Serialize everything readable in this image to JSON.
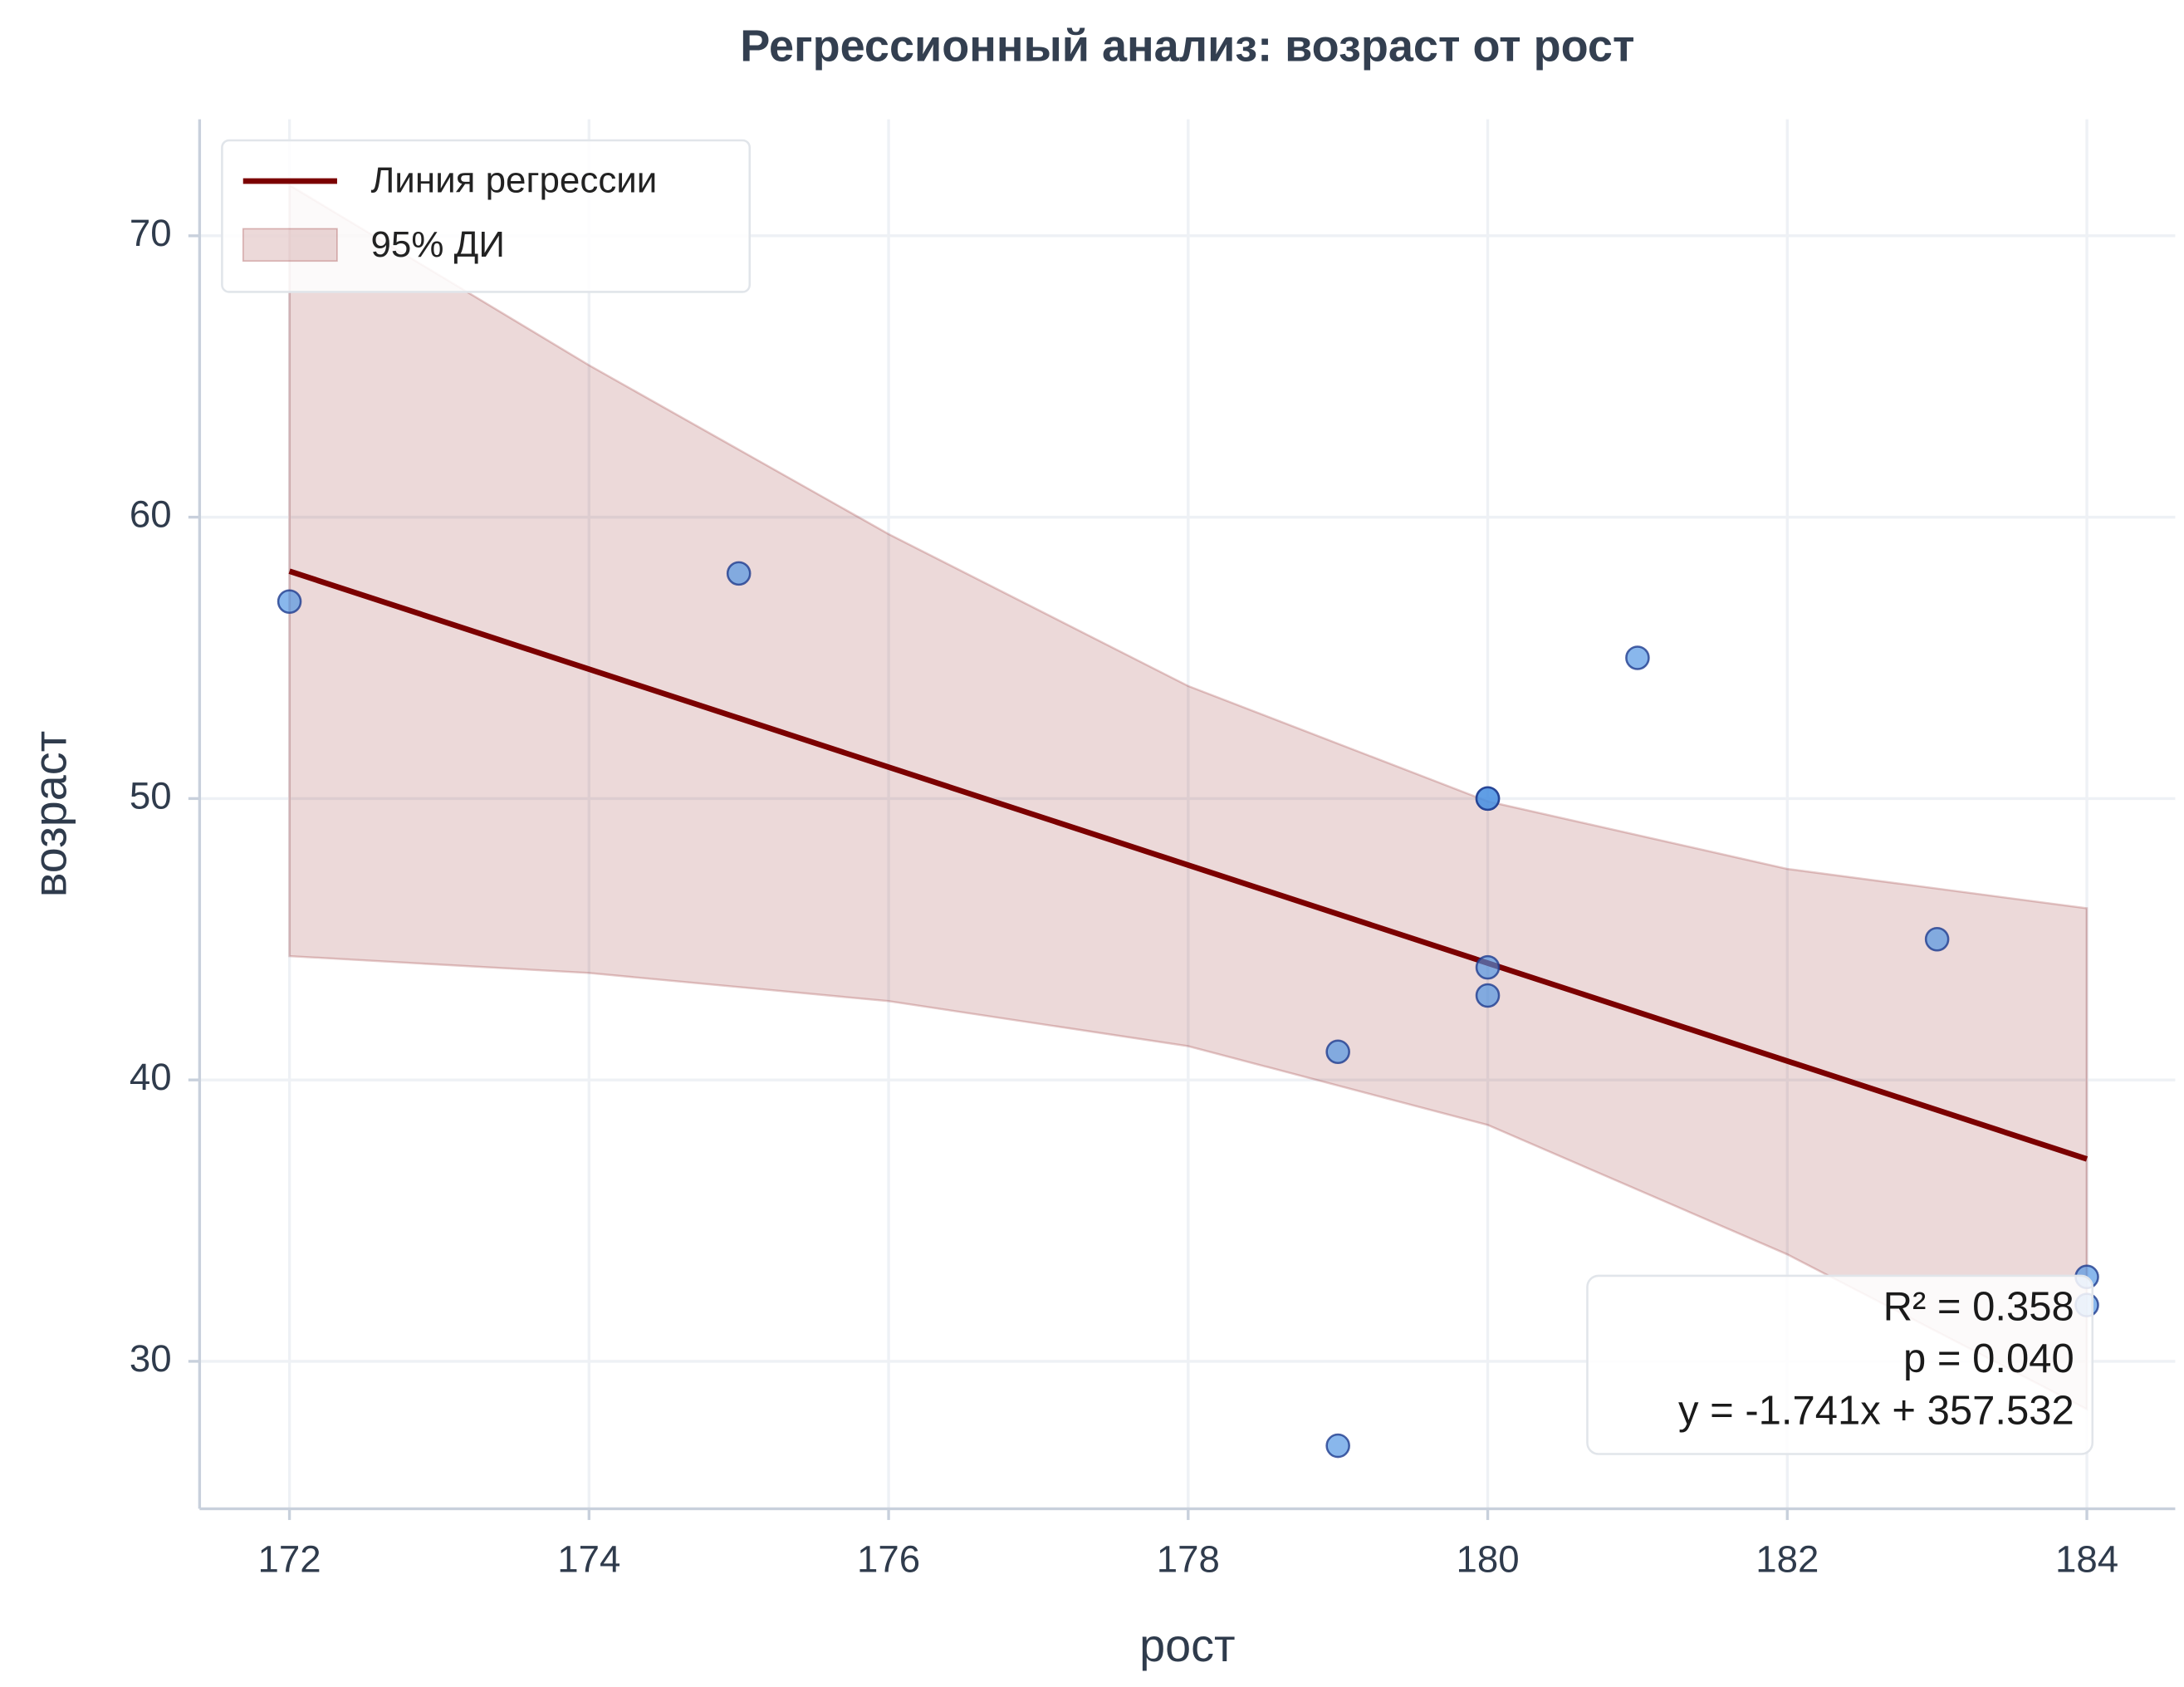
{
  "chart_data": {
    "type": "scatter",
    "title": "Регрессионный анализ: возраст от рост",
    "xlabel": "рост",
    "ylabel": "возраст",
    "x": [
      172,
      175,
      181,
      180,
      180,
      180,
      180,
      183,
      179,
      184,
      184,
      179
    ],
    "values": [
      57,
      58,
      55,
      50,
      50,
      44,
      43,
      45,
      41,
      33,
      32,
      27
    ],
    "color": "#4a90e2",
    "xlim": [
      171.4,
      184.59
    ],
    "ylim": [
      24.76,
      74.14
    ],
    "xticks": [
      172,
      174,
      176,
      178,
      180,
      182,
      184
    ],
    "yticks": [
      30,
      40,
      50,
      60,
      70
    ],
    "grid": true,
    "legend": "upper left",
    "regression": {
      "name": "Линия регрессии",
      "color": "#7b0000",
      "x": [
        172,
        184
      ],
      "values": [
        58.08,
        37.19
      ]
    },
    "band": {
      "name": "95% ДИ",
      "color": "#800000",
      "x": [
        172,
        174,
        176,
        178,
        180,
        182,
        184
      ],
      "lower": [
        44.4,
        43.8,
        42.8,
        41.2,
        38.4,
        33.8,
        28.3
      ],
      "upper": [
        71.8,
        65.4,
        59.4,
        54.0,
        49.9,
        47.5,
        46.1
      ]
    },
    "annotations": [
      "R² = 0.358",
      "p = 0.040",
      "y = -1.741x + 357.532"
    ]
  }
}
